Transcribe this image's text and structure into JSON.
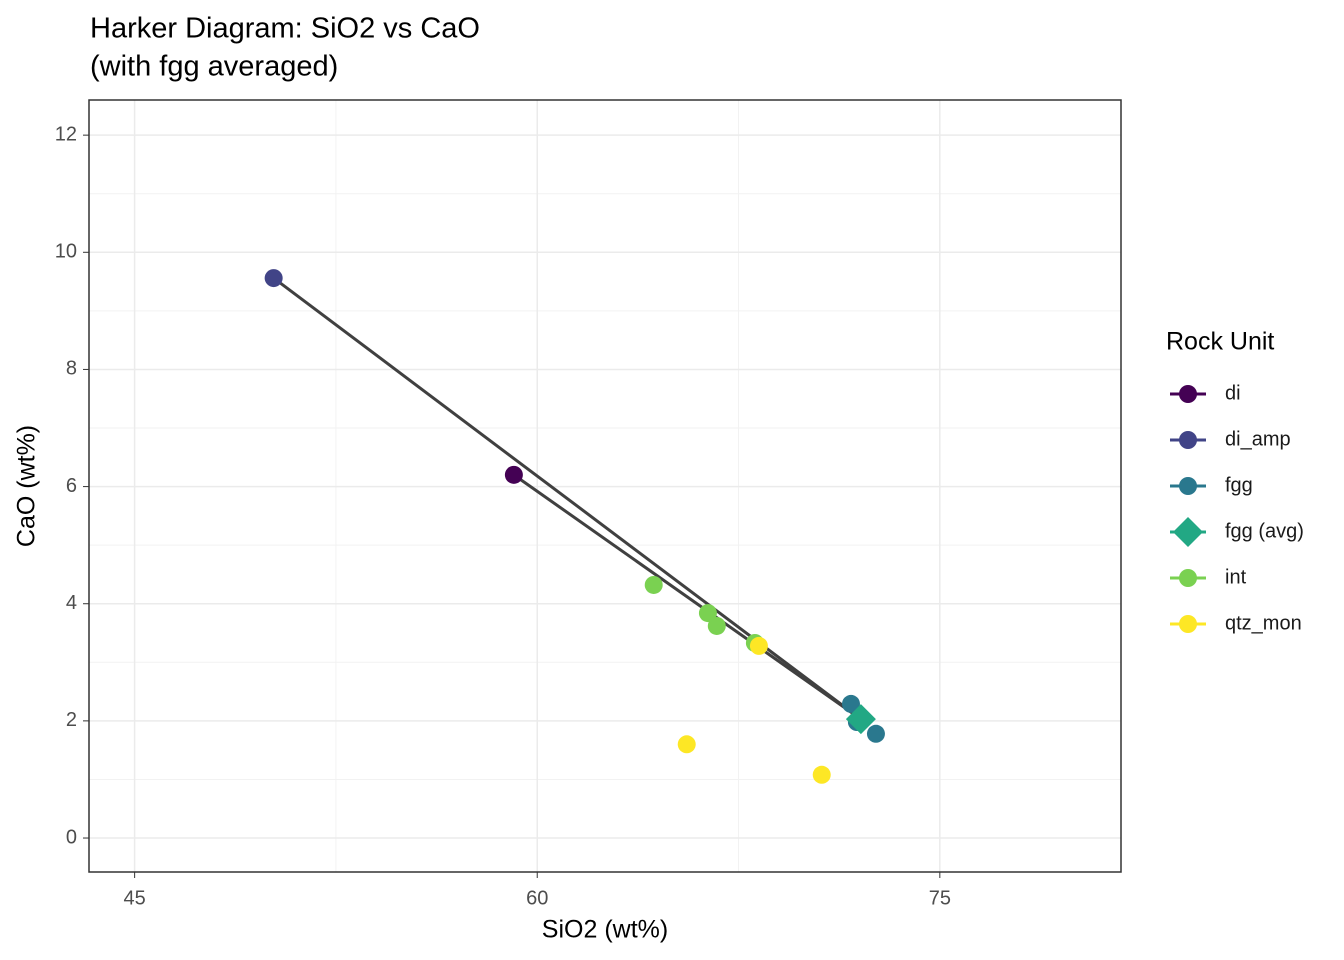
{
  "chart_data": {
    "type": "scatter",
    "title": "Harker Diagram: SiO2 vs CaO",
    "subtitle": "(with fgg averaged)",
    "x_label": "SiO2 (wt%)",
    "y_label": "CaO (wt%)",
    "legend_title": "Rock Unit",
    "legend_position": "right",
    "xlim": [
      43.3,
      81.75
    ],
    "xticks": [
      45,
      60,
      75
    ],
    "x_minor_grid": [
      52.5,
      67.5
    ],
    "ylim": [
      -0.58,
      12.6
    ],
    "yticks": [
      0,
      2,
      4,
      6,
      8,
      10,
      12
    ],
    "y_minor_grid": [
      1,
      3,
      5,
      7,
      9,
      11
    ],
    "grid": true,
    "lines": [
      {
        "color": "#404040",
        "x": [
          50.18,
          72.06
        ],
        "y": [
          9.56,
          2.03
        ]
      },
      {
        "color": "#404040",
        "x": [
          59.13,
          72.06
        ],
        "y": [
          6.2,
          2.03
        ]
      }
    ],
    "series": [
      {
        "name": "di",
        "color": "#440154",
        "shape": "circle",
        "x": [
          59.13
        ],
        "y": [
          6.2
        ]
      },
      {
        "name": "di_amp",
        "color": "#414487",
        "shape": "circle",
        "x": [
          50.18
        ],
        "y": [
          9.56
        ]
      },
      {
        "name": "fgg",
        "color": "#2A788E",
        "shape": "circle",
        "x": [
          71.69,
          71.91,
          72.62
        ],
        "y": [
          2.29,
          1.98,
          1.78
        ]
      },
      {
        "name": "fgg (avg)",
        "color": "#22A884",
        "shape": "diamond",
        "x": [
          72.06
        ],
        "y": [
          2.03
        ]
      },
      {
        "name": "int",
        "color": "#7AD151",
        "shape": "circle",
        "x": [
          64.34,
          66.36,
          66.69,
          68.11
        ],
        "y": [
          4.32,
          3.84,
          3.62,
          3.33
        ]
      },
      {
        "name": "qtz_mon",
        "color": "#FDE725",
        "shape": "circle",
        "x": [
          68.26,
          65.57,
          70.6
        ],
        "y": [
          3.28,
          1.6,
          1.08
        ]
      }
    ]
  }
}
